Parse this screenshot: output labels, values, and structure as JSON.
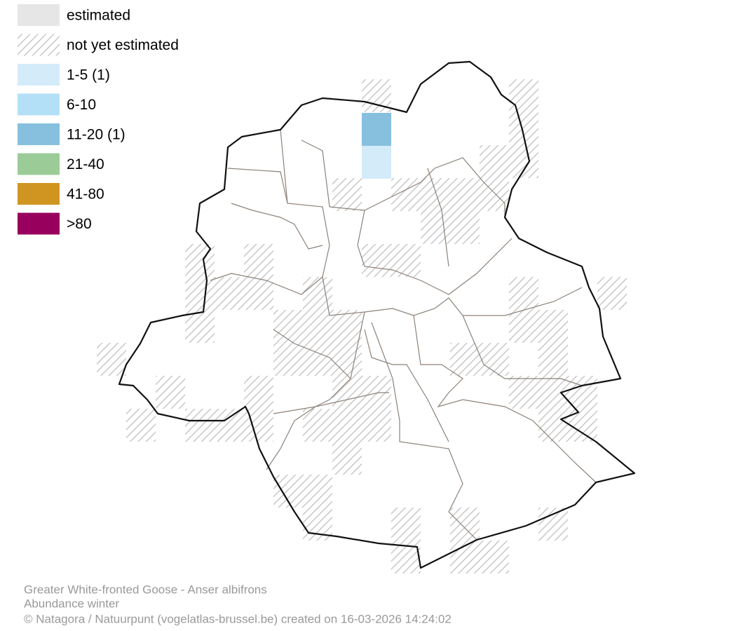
{
  "legend": [
    {
      "label": "estimated",
      "color": "#e6e6e6"
    },
    {
      "label": "not yet estimated"
    },
    {
      "label": "1-5 (1)",
      "color": "#d4ebfa"
    },
    {
      "label": "6-10",
      "color": "#b3e0f7"
    },
    {
      "label": "11-20 (1)",
      "color": "#86c0de"
    },
    {
      "label": "21-40",
      "color": "#9bcc98"
    },
    {
      "label": "41-80",
      "color": "#d09521"
    },
    {
      "label": ">80",
      "color": "#98005e"
    }
  ],
  "footer": {
    "species": "Greater White-fronted Goose - Anser albifrons",
    "subtitle": "Abundance winter",
    "credit": "© Natagora / Natuurpunt (vogelatlas-brussel.be) created on 16-03-2026 14:24:02"
  }
}
